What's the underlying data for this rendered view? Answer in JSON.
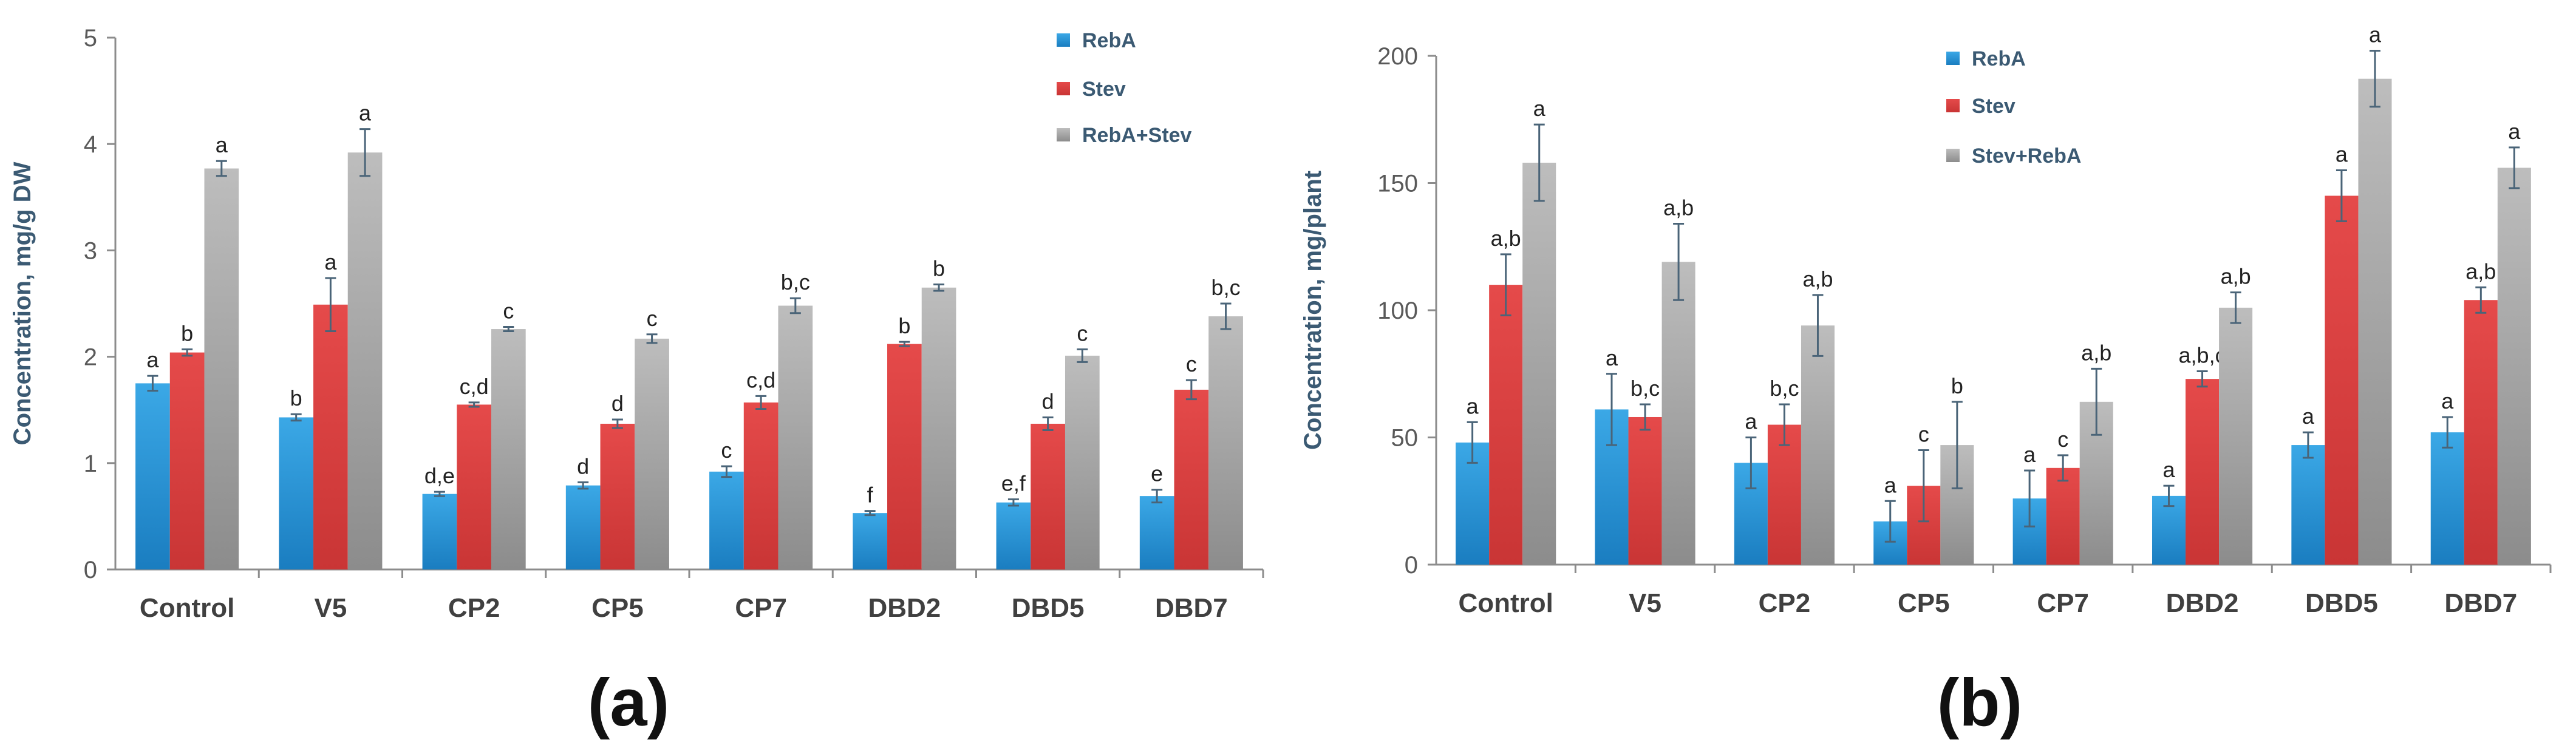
{
  "chart_data": [
    {
      "type": "bar",
      "panel_label": "(a)",
      "title": "",
      "xlabel": "",
      "ylabel": "Concentration, mg/g DW",
      "ylim": [
        0,
        5
      ],
      "yticks": [
        "0",
        "1",
        "2",
        "3",
        "4",
        "5"
      ],
      "legend_position": "top-right",
      "categories": [
        "Control",
        "V5",
        "CP2",
        "CP5",
        "CP7",
        "DBD2",
        "DBD5",
        "DBD7"
      ],
      "series": [
        {
          "name": "RebA",
          "color": "#2E9BD6",
          "values": [
            1.75,
            1.43,
            0.71,
            0.79,
            0.92,
            0.53,
            0.63,
            0.69
          ],
          "errors": [
            0.07,
            0.03,
            0.02,
            0.03,
            0.05,
            0.02,
            0.03,
            0.06
          ],
          "labels": [
            "a",
            "b",
            "d,e",
            "d",
            "c",
            "f",
            "e,f",
            "e"
          ]
        },
        {
          "name": "Stev",
          "color": "#E04040",
          "values": [
            2.04,
            2.49,
            1.55,
            1.37,
            1.57,
            2.12,
            1.37,
            1.69
          ],
          "errors": [
            0.03,
            0.25,
            0.02,
            0.04,
            0.06,
            0.02,
            0.06,
            0.09
          ],
          "labels": [
            "b",
            "a",
            "c,d",
            "d",
            "c,d",
            "b",
            "d",
            "c"
          ]
        },
        {
          "name": "RebA+Stev",
          "color": "#A6A6A6",
          "values": [
            3.77,
            3.92,
            2.26,
            2.17,
            2.48,
            2.65,
            2.01,
            2.38
          ],
          "errors": [
            0.07,
            0.22,
            0.02,
            0.04,
            0.07,
            0.03,
            0.06,
            0.12
          ],
          "labels": [
            "a",
            "a",
            "c",
            "c",
            "b,c",
            "b",
            "c",
            "b,c"
          ]
        }
      ]
    },
    {
      "type": "bar",
      "panel_label": "(b)",
      "title": "",
      "xlabel": "",
      "ylabel": "Concentration, mg/plant",
      "ylim": [
        0,
        200
      ],
      "yticks": [
        "0",
        "50",
        "100",
        "150",
        "200"
      ],
      "legend_position": "top-center",
      "categories": [
        "Control",
        "V5",
        "CP2",
        "CP5",
        "CP7",
        "DBD2",
        "DBD5",
        "DBD7"
      ],
      "series": [
        {
          "name": "RebA",
          "color": "#2E9BD6",
          "values": [
            48,
            61,
            40,
            17,
            26,
            27,
            47,
            52
          ],
          "errors": [
            8,
            14,
            10,
            8,
            11,
            4,
            5,
            6
          ],
          "labels": [
            "a",
            "a",
            "a",
            "a",
            "a",
            "a",
            "a",
            "a"
          ]
        },
        {
          "name": "Stev",
          "color": "#E04040",
          "values": [
            110,
            58,
            55,
            31,
            38,
            73,
            145,
            104
          ],
          "errors": [
            12,
            5,
            8,
            14,
            5,
            3,
            10,
            5
          ],
          "labels": [
            "a,b",
            "b,c",
            "b,c",
            "c",
            "c",
            "a,b,c",
            "a",
            "a,b"
          ]
        },
        {
          "name": "Stev+RebA",
          "color": "#A6A6A6",
          "values": [
            158,
            119,
            94,
            47,
            64,
            101,
            191,
            156
          ],
          "errors": [
            15,
            15,
            12,
            17,
            13,
            6,
            11,
            8
          ],
          "labels": [
            "a",
            "a,b",
            "a,b",
            "b",
            "a,b",
            "a,b",
            "a",
            "a"
          ]
        }
      ]
    }
  ]
}
